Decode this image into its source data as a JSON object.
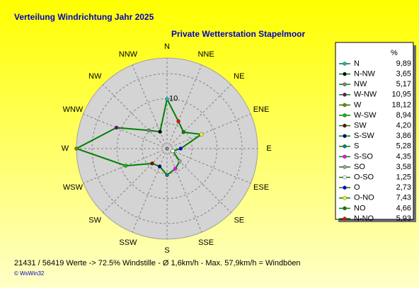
{
  "chart_data": {
    "type": "radar",
    "title": "Verteilung Windrichtung   Jahr 2025",
    "subtitle": "Private Wetterstation Stapelmoor",
    "directions": [
      "N",
      "NNE",
      "NE",
      "ENE",
      "E",
      "ESE",
      "SE",
      "SSE",
      "S",
      "SSW",
      "SW",
      "WSW",
      "W",
      "WNW",
      "NW",
      "NNW"
    ],
    "categories": [
      "N",
      "N-NW",
      "NW",
      "W-NW",
      "W",
      "W-SW",
      "SW",
      "S-SW",
      "S",
      "S-SO",
      "SO",
      "O-SO",
      "O",
      "O-NO",
      "NO",
      "N-NO"
    ],
    "values": [
      9.89,
      3.65,
      5.17,
      10.95,
      18.12,
      8.94,
      4.2,
      3.86,
      5.28,
      4.35,
      3.58,
      1.25,
      2.73,
      7.43,
      4.66,
      5.93
    ],
    "value_labels": [
      "9,89",
      "3,65",
      "5,17",
      "10,95",
      "18,12",
      "8,94",
      "4,20",
      "3,86",
      "5,28",
      "4,35",
      "3,58",
      "1,25",
      "2,73",
      "7,43",
      "4,66",
      "5,93"
    ],
    "colors": [
      "#00c0c0",
      "#000000",
      "#808080",
      "#800080",
      "#808000",
      "#00c000",
      "#800000",
      "#000080",
      "#008080",
      "#ff00ff",
      "#a0a0a0",
      "#ffffff",
      "#0000ff",
      "#ffff00",
      "#008000",
      "#ff0000"
    ],
    "line_color": "#008000",
    "legend_header": "%",
    "rlim": [
      0,
      18.12
    ],
    "rgrid": [
      5,
      10,
      15
    ],
    "rticks": [
      10
    ],
    "footer": "21431 / 56419 Werte  -> 72.5% Windstille   -   Ø 1,6km/h  -  Max. 57,9km/h = Windböen",
    "copyright": "© WsWin32"
  }
}
